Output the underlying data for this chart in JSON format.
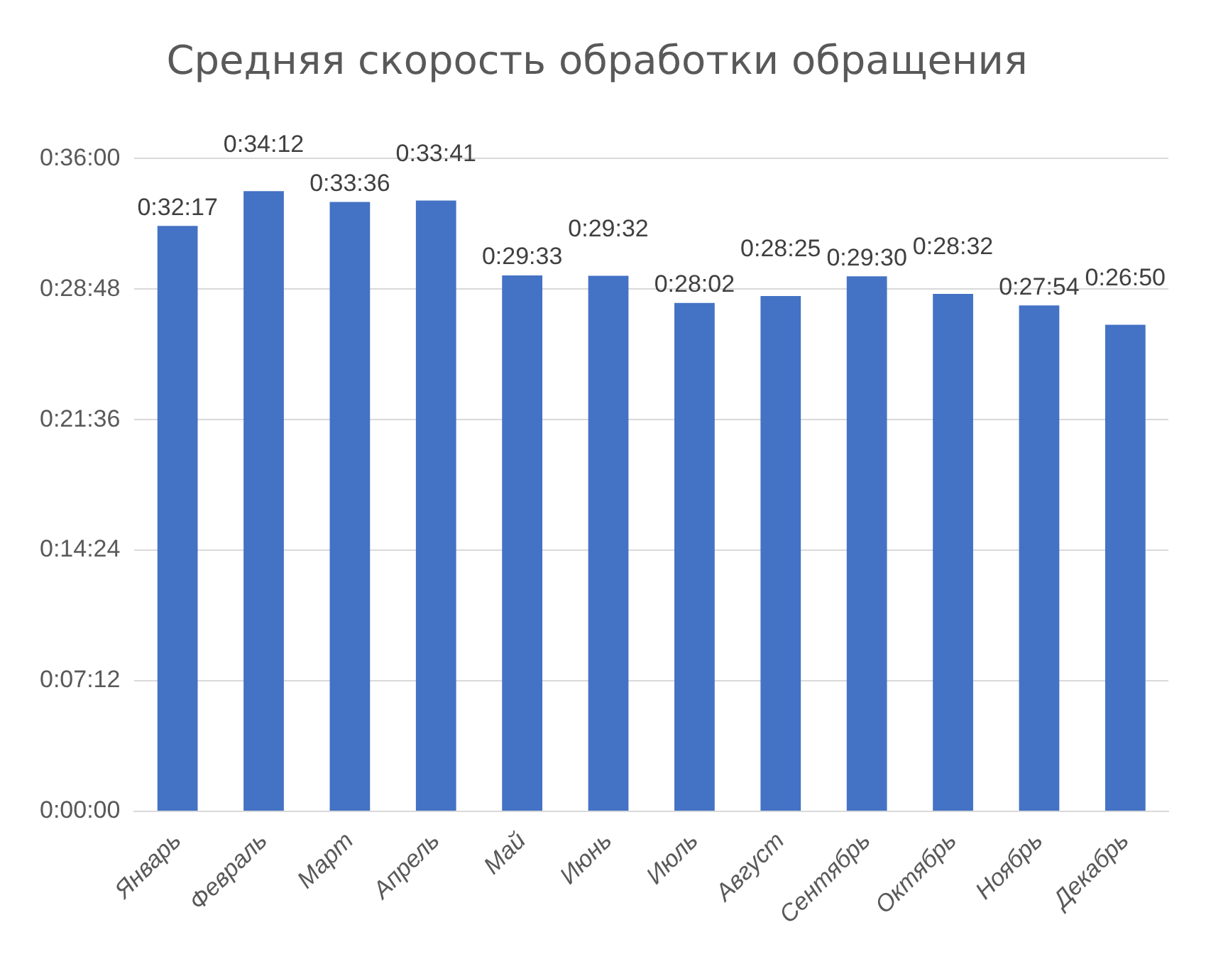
{
  "chart_data": {
    "type": "bar",
    "title": "Средняя скорость обработки обращения",
    "categories": [
      "Январь",
      "Февраль",
      "Март",
      "Апрель",
      "Май",
      "Июнь",
      "Июль",
      "Август",
      "Сентябрь",
      "Октябрь",
      "Ноябрь",
      "Декабрь"
    ],
    "values": [
      1937,
      2052,
      2016,
      2021,
      1773,
      1772,
      1682,
      1705,
      1770,
      1712,
      1674,
      1610
    ],
    "value_labels": [
      "0:32:17",
      "0:34:12",
      "0:33:36",
      "0:33:41",
      "0:29:33",
      "0:29:32",
      "0:28:02",
      "0:28:25",
      "0:29:30",
      "0:28:32",
      "0:27:54",
      "0:26:50"
    ],
    "color": "#4472c4",
    "ylim": [
      0,
      2160
    ],
    "yticks": [
      {
        "value": 0,
        "label": "0:00:00"
      },
      {
        "value": 432,
        "label": "0:07:12"
      },
      {
        "value": 864,
        "label": "0:14:24"
      },
      {
        "value": 1296,
        "label": "0:21:36"
      },
      {
        "value": 1728,
        "label": "0:28:48"
      },
      {
        "value": 2160,
        "label": "0:36:00"
      }
    ],
    "grid": "y",
    "legend": false
  }
}
